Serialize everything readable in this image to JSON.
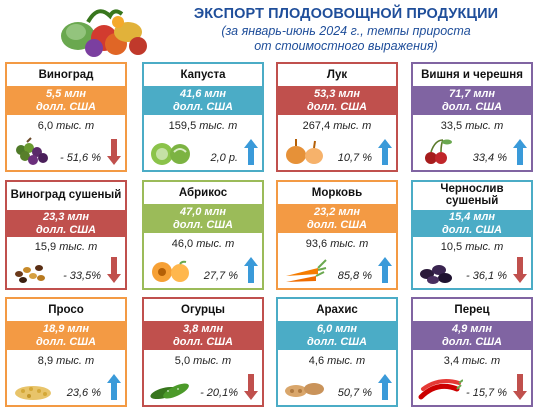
{
  "header": {
    "title": "ЭКСПОРТ ПЛОДООВОЩНОЙ ПРОДУКЦИИ",
    "subtitle_line1": "(за январь-июнь 2024 г., темпы прироста",
    "subtitle_line2": "от стоимостного выражения)"
  },
  "colors": {
    "orange": "#f39a44",
    "teal": "#4bacc6",
    "red": "#c0504d",
    "purple": "#8064a2",
    "green": "#9bbb59",
    "up": "#3a9ad9",
    "down": "#c0504d"
  },
  "cards": [
    {
      "name": "Виноград",
      "value": "5,5 млн",
      "unit": "долл. США",
      "volume": "6,0",
      "vol_unit": "тыс. т",
      "change": "- 51,6 %",
      "trend": "down",
      "color": "orange",
      "icon": "grapes-icon"
    },
    {
      "name": "Капуста",
      "value": "41,6 млн",
      "unit": "долл. США",
      "volume": "159,5",
      "vol_unit": "тыс. т",
      "change": "2,0 р.",
      "trend": "up",
      "color": "teal",
      "icon": "cabbage-icon"
    },
    {
      "name": "Лук",
      "value": "53,3 млн",
      "unit": "долл. США",
      "volume": "267,4",
      "vol_unit": "тыс. т",
      "change": "10,7 %",
      "trend": "up",
      "color": "red",
      "icon": "onion-icon"
    },
    {
      "name": "Вишня и черешня",
      "value": "71,7 млн",
      "unit": "долл. США",
      "volume": "33,5",
      "vol_unit": "тыс. т",
      "change": "33,4 %",
      "trend": "up",
      "color": "purple",
      "icon": "cherry-icon"
    },
    {
      "name": "Виноград сушеный",
      "value": "23,3 млн",
      "unit": "долл. США",
      "volume": "15,9",
      "vol_unit": "тыс. т",
      "change": "- 33,5%",
      "trend": "down",
      "color": "red",
      "icon": "raisins-icon",
      "two": true
    },
    {
      "name": "Абрикос",
      "value": "47,0 млн",
      "unit": "долл. США",
      "volume": "46,0",
      "vol_unit": "тыс. т",
      "change": "27,7 %",
      "trend": "up",
      "color": "green",
      "icon": "apricot-icon"
    },
    {
      "name": "Морковь",
      "value": "23,2 млн",
      "unit": "долл. США",
      "volume": "93,6",
      "vol_unit": "тыс. т",
      "change": "85,8 %",
      "trend": "up",
      "color": "orange",
      "icon": "carrot-icon"
    },
    {
      "name": "Чернослив сушеный",
      "value": "15,4 млн",
      "unit": "долл. США",
      "volume": "10,5",
      "vol_unit": "тыс. т",
      "change": "- 36,1 %",
      "trend": "down",
      "color": "teal",
      "icon": "prunes-icon",
      "two": true
    },
    {
      "name": "Просо",
      "value": "18,9 млн",
      "unit": "долл. США",
      "volume": "8,9",
      "vol_unit": "тыс. т",
      "change": "23,6 %",
      "trend": "up",
      "color": "orange",
      "icon": "millet-icon"
    },
    {
      "name": "Огурцы",
      "value": "3,8 млн",
      "unit": "долл. США",
      "volume": "5,0",
      "vol_unit": "тыс. т",
      "change": "- 20,1%",
      "trend": "down",
      "color": "red",
      "icon": "cucumber-icon"
    },
    {
      "name": "Арахис",
      "value": "6,0 млн",
      "unit": "долл. США",
      "volume": "4,6",
      "vol_unit": "тыс. т",
      "change": "50,7 %",
      "trend": "up",
      "color": "teal",
      "icon": "peanut-icon"
    },
    {
      "name": "Перец",
      "value": "4,9 млн",
      "unit": "долл. США",
      "volume": "3,4",
      "vol_unit": "тыс. т",
      "change": "- 15,7 %",
      "trend": "down",
      "color": "purple",
      "icon": "pepper-icon"
    }
  ]
}
